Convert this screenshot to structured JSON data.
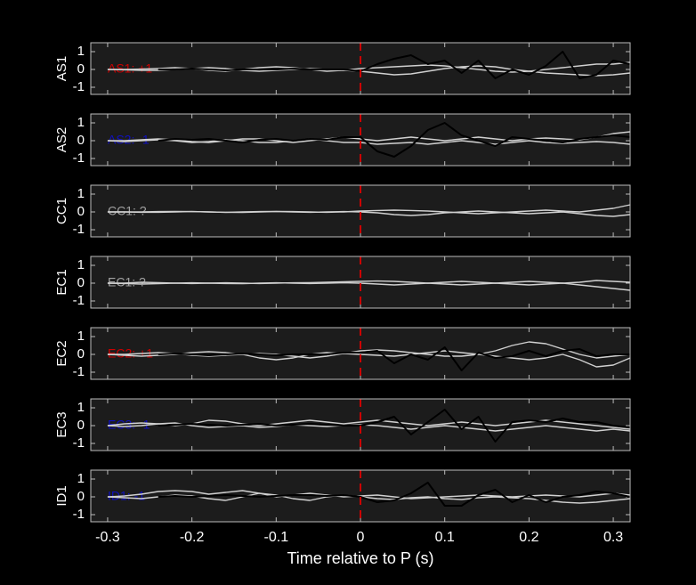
{
  "chart_data": [
    {
      "type": "line",
      "ylabel": "AS1",
      "annotation": {
        "text": "AS1: +1",
        "color": "#cc0000"
      },
      "xlim": [
        -0.32,
        0.32
      ],
      "xticks": [
        -0.3,
        -0.2,
        -0.1,
        0,
        0.1,
        0.2,
        0.3
      ],
      "ylim": [
        -1.4,
        1.5
      ],
      "yticks": [
        -1,
        0,
        1
      ],
      "vline": {
        "x": 0,
        "color": "#e00000"
      },
      "x": [
        -0.3,
        -0.28,
        -0.26,
        -0.24,
        -0.22,
        -0.2,
        -0.18,
        -0.16,
        -0.14,
        -0.12,
        -0.1,
        -0.08,
        -0.06,
        -0.04,
        -0.02,
        0,
        0.02,
        0.04,
        0.06,
        0.08,
        0.1,
        0.12,
        0.14,
        0.16,
        0.18,
        0.2,
        0.22,
        0.24,
        0.26,
        0.28,
        0.3,
        0.32
      ],
      "series": [
        {
          "color": "#d0d0d0",
          "values": [
            0,
            0,
            0.02,
            0.05,
            0.1,
            0.05,
            -0.05,
            -0.1,
            0,
            0.1,
            0.15,
            0.1,
            0,
            -0.1,
            -0.05,
            0.05,
            0.1,
            0.15,
            0.2,
            0.25,
            0.2,
            0.1,
            0,
            -0.1,
            -0.15,
            -0.1,
            0,
            0.1,
            0.2,
            0.3,
            0.3,
            0.4
          ]
        },
        {
          "color": "#d0d0d0",
          "values": [
            0,
            -0.02,
            -0.05,
            -0.05,
            0,
            0.05,
            0.1,
            0.05,
            -0.05,
            -0.1,
            -0.05,
            0,
            0.05,
            0,
            -0.05,
            -0.1,
            -0.2,
            -0.3,
            -0.25,
            -0.1,
            0.05,
            0.15,
            0.2,
            0.15,
            0,
            -0.1,
            -0.2,
            -0.25,
            -0.3,
            -0.35,
            -0.3,
            -0.2
          ]
        },
        {
          "color": "#000000",
          "values": [
            null,
            null,
            null,
            0,
            0,
            0.05,
            0,
            -0.05,
            0,
            0,
            0,
            0.05,
            0,
            0,
            0,
            -0.1,
            0.3,
            0.6,
            0.8,
            0.3,
            0.5,
            -0.2,
            0.5,
            -0.5,
            0,
            -0.3,
            0.2,
            1.0,
            -0.5,
            -0.3,
            0.5,
            0.3
          ]
        }
      ]
    },
    {
      "type": "line",
      "ylabel": "AS2",
      "annotation": {
        "text": "AS2: -1",
        "color": "#1010c0"
      },
      "xlim": [
        -0.32,
        0.32
      ],
      "xticks": [
        -0.3,
        -0.2,
        -0.1,
        0,
        0.1,
        0.2,
        0.3
      ],
      "ylim": [
        -1.4,
        1.5
      ],
      "yticks": [
        -1,
        0,
        1
      ],
      "vline": {
        "x": 0,
        "color": "#e00000"
      },
      "x": [
        -0.3,
        -0.28,
        -0.26,
        -0.24,
        -0.22,
        -0.2,
        -0.18,
        -0.16,
        -0.14,
        -0.12,
        -0.1,
        -0.08,
        -0.06,
        -0.04,
        -0.02,
        0,
        0.02,
        0.04,
        0.06,
        0.08,
        0.1,
        0.12,
        0.14,
        0.16,
        0.18,
        0.2,
        0.22,
        0.24,
        0.26,
        0.28,
        0.3,
        0.32
      ],
      "series": [
        {
          "color": "#d0d0d0",
          "values": [
            0,
            0,
            0.05,
            0.1,
            0.05,
            -0.05,
            -0.1,
            0,
            0.1,
            0.1,
            0,
            -0.1,
            0,
            0.1,
            0.2,
            0.1,
            0,
            0.1,
            0.2,
            0.1,
            0,
            0.1,
            0.2,
            0.1,
            0,
            0.1,
            0.15,
            0.1,
            0.05,
            0.2,
            0.4,
            0.5
          ]
        },
        {
          "color": "#d0d0d0",
          "values": [
            0,
            -0.05,
            0,
            0.05,
            0,
            -0.1,
            -0.05,
            0.05,
            0,
            -0.1,
            -0.1,
            0,
            0.1,
            0,
            -0.1,
            -0.1,
            -0.2,
            -0.15,
            -0.1,
            -0.2,
            -0.1,
            0,
            -0.1,
            -0.2,
            -0.1,
            0,
            -0.1,
            -0.15,
            -0.1,
            -0.05,
            -0.1,
            -0.2
          ]
        },
        {
          "color": "#000000",
          "values": [
            null,
            null,
            null,
            0,
            0.1,
            0.05,
            0.1,
            0,
            -0.1,
            0.05,
            0.1,
            0,
            0.1,
            0.05,
            0.2,
            0.2,
            -0.6,
            -0.9,
            -0.3,
            0.6,
            1.0,
            0.3,
            0,
            -0.3,
            0.2,
            0.1,
            0,
            -0.1,
            0.1,
            0.2,
            0.3,
            0.2
          ]
        }
      ]
    },
    {
      "type": "line",
      "ylabel": "CC1",
      "annotation": {
        "text": "CC1: ?",
        "color": "#a0a0a0"
      },
      "xlim": [
        -0.32,
        0.32
      ],
      "xticks": [
        -0.3,
        -0.2,
        -0.1,
        0,
        0.1,
        0.2,
        0.3
      ],
      "ylim": [
        -1.4,
        1.5
      ],
      "yticks": [
        -1,
        0,
        1
      ],
      "vline": {
        "x": 0,
        "color": "#e00000"
      },
      "x": [
        -0.3,
        -0.28,
        -0.26,
        -0.24,
        -0.22,
        -0.2,
        -0.18,
        -0.16,
        -0.14,
        -0.12,
        -0.1,
        -0.08,
        -0.06,
        -0.04,
        -0.02,
        0,
        0.02,
        0.04,
        0.06,
        0.08,
        0.1,
        0.12,
        0.14,
        0.16,
        0.18,
        0.2,
        0.22,
        0.24,
        0.26,
        0.28,
        0.3,
        0.32
      ],
      "series": [
        {
          "color": "#d0d0d0",
          "values": [
            0,
            0,
            0,
            0.02,
            0.03,
            0.02,
            0,
            -0.02,
            0,
            0.02,
            0.03,
            0.02,
            0,
            -0.02,
            0,
            0.05,
            0.08,
            0.1,
            0.08,
            0.05,
            0,
            -0.05,
            -0.1,
            -0.05,
            0,
            0.05,
            0.1,
            0.05,
            0,
            0.1,
            0.2,
            0.4
          ]
        },
        {
          "color": "#d0d0d0",
          "values": [
            0,
            0,
            -0.02,
            -0.02,
            0,
            0.02,
            0,
            -0.02,
            -0.03,
            0,
            0.02,
            0,
            -0.02,
            0,
            0.02,
            0,
            -0.05,
            -0.15,
            -0.2,
            -0.15,
            -0.05,
            0,
            0.05,
            0,
            -0.05,
            -0.1,
            -0.05,
            0,
            -0.1,
            -0.2,
            -0.25,
            -0.15
          ]
        }
      ]
    },
    {
      "type": "line",
      "ylabel": "EC1",
      "annotation": {
        "text": "EC1: ?",
        "color": "#a0a0a0"
      },
      "xlim": [
        -0.32,
        0.32
      ],
      "xticks": [
        -0.3,
        -0.2,
        -0.1,
        0,
        0.1,
        0.2,
        0.3
      ],
      "ylim": [
        -1.4,
        1.5
      ],
      "yticks": [
        -1,
        0,
        1
      ],
      "vline": {
        "x": 0,
        "color": "#e00000"
      },
      "x": [
        -0.3,
        -0.28,
        -0.26,
        -0.24,
        -0.22,
        -0.2,
        -0.18,
        -0.16,
        -0.14,
        -0.12,
        -0.1,
        -0.08,
        -0.06,
        -0.04,
        -0.02,
        0,
        0.02,
        0.04,
        0.06,
        0.08,
        0.1,
        0.12,
        0.14,
        0.16,
        0.18,
        0.2,
        0.22,
        0.24,
        0.26,
        0.28,
        0.3,
        0.32
      ],
      "series": [
        {
          "color": "#d0d0d0",
          "values": [
            0,
            0,
            0.05,
            0.03,
            0,
            -0.02,
            0,
            0.02,
            0,
            -0.02,
            0,
            0.02,
            0.03,
            0.05,
            0.08,
            0.1,
            0.12,
            0.1,
            0.05,
            0,
            0.05,
            0.1,
            0.05,
            0,
            0.05,
            0.1,
            0.05,
            0,
            0.05,
            0.15,
            0.1,
            0.05
          ]
        },
        {
          "color": "#d0d0d0",
          "values": [
            0,
            -0.02,
            -0.05,
            -0.03,
            0,
            0.02,
            0,
            -0.02,
            -0.03,
            0,
            0.02,
            0,
            -0.02,
            0,
            0.02,
            0,
            -0.05,
            -0.1,
            -0.05,
            0,
            -0.05,
            -0.1,
            -0.05,
            0,
            -0.05,
            -0.1,
            -0.05,
            0,
            -0.1,
            -0.2,
            -0.3,
            -0.4
          ]
        }
      ]
    },
    {
      "type": "line",
      "ylabel": "EC2",
      "annotation": {
        "text": "EC2: +1",
        "color": "#cc0000"
      },
      "xlim": [
        -0.32,
        0.32
      ],
      "xticks": [
        -0.3,
        -0.2,
        -0.1,
        0,
        0.1,
        0.2,
        0.3
      ],
      "ylim": [
        -1.4,
        1.5
      ],
      "yticks": [
        -1,
        0,
        1
      ],
      "vline": {
        "x": 0,
        "color": "#e00000"
      },
      "x": [
        -0.3,
        -0.28,
        -0.26,
        -0.24,
        -0.22,
        -0.2,
        -0.18,
        -0.16,
        -0.14,
        -0.12,
        -0.1,
        -0.08,
        -0.06,
        -0.04,
        -0.02,
        0,
        0.02,
        0.04,
        0.06,
        0.08,
        0.1,
        0.12,
        0.14,
        0.16,
        0.18,
        0.2,
        0.22,
        0.24,
        0.26,
        0.28,
        0.3,
        0.32
      ],
      "series": [
        {
          "color": "#d0d0d0",
          "values": [
            0,
            0,
            0.05,
            0.1,
            0.05,
            -0.05,
            -0.1,
            -0.05,
            0,
            0.05,
            0,
            -0.1,
            -0.2,
            -0.1,
            0.05,
            0.2,
            0.25,
            0.2,
            0.1,
            0,
            -0.1,
            -0.1,
            0,
            0.2,
            0.5,
            0.7,
            0.6,
            0.3,
            0,
            -0.2,
            -0.1,
            0
          ]
        },
        {
          "color": "#d0d0d0",
          "values": [
            0,
            -0.05,
            -0.1,
            -0.05,
            0,
            0.1,
            0.15,
            0.1,
            0,
            -0.2,
            -0.3,
            -0.2,
            0,
            0.1,
            0.05,
            0,
            -0.05,
            -0.1,
            0,
            0.1,
            0.2,
            0.1,
            0,
            -0.1,
            -0.2,
            -0.3,
            -0.2,
            0,
            -0.3,
            -0.7,
            -0.6,
            -0.2
          ]
        },
        {
          "color": "#000000",
          "values": [
            null,
            null,
            null,
            0,
            0.05,
            0,
            -0.05,
            0,
            0.05,
            0,
            -0.05,
            0,
            0,
            0,
            0.1,
            0.1,
            0.2,
            -0.5,
            0,
            -0.3,
            0.4,
            -0.9,
            0.1,
            -0.2,
            -0.1,
            0.2,
            -0.1,
            0.2,
            0.3,
            -0.1,
            0,
            0
          ]
        }
      ]
    },
    {
      "type": "line",
      "ylabel": "EC3",
      "annotation": {
        "text": "EC3: -1",
        "color": "#1010c0"
      },
      "xlim": [
        -0.32,
        0.32
      ],
      "xticks": [
        -0.3,
        -0.2,
        -0.1,
        0,
        0.1,
        0.2,
        0.3
      ],
      "ylim": [
        -1.4,
        1.5
      ],
      "yticks": [
        -1,
        0,
        1
      ],
      "vline": {
        "x": 0,
        "color": "#e00000"
      },
      "x": [
        -0.3,
        -0.28,
        -0.26,
        -0.24,
        -0.22,
        -0.2,
        -0.18,
        -0.16,
        -0.14,
        -0.12,
        -0.1,
        -0.08,
        -0.06,
        -0.04,
        -0.02,
        0,
        0.02,
        0.04,
        0.06,
        0.08,
        0.1,
        0.12,
        0.14,
        0.16,
        0.18,
        0.2,
        0.22,
        0.24,
        0.26,
        0.28,
        0.3,
        0.32
      ],
      "series": [
        {
          "color": "#d0d0d0",
          "values": [
            0,
            0.1,
            0.15,
            0.1,
            0,
            0.1,
            0.3,
            0.25,
            0.1,
            0,
            0.1,
            0.2,
            0.3,
            0.2,
            0.1,
            0.2,
            0.3,
            0.2,
            0.1,
            0,
            0.1,
            0.2,
            0.1,
            0,
            0.1,
            0.2,
            0.3,
            0.2,
            0.1,
            0,
            -0.1,
            -0.2
          ]
        },
        {
          "color": "#d0d0d0",
          "values": [
            0,
            -0.05,
            0,
            0.1,
            0.15,
            0,
            -0.1,
            -0.05,
            0,
            -0.1,
            -0.05,
            0.05,
            0,
            -0.05,
            0,
            0.05,
            0,
            -0.1,
            -0.2,
            -0.1,
            0,
            -0.1,
            -0.2,
            -0.3,
            -0.2,
            -0.1,
            0,
            -0.1,
            -0.2,
            -0.3,
            -0.2,
            -0.3
          ]
        },
        {
          "color": "#000000",
          "values": [
            null,
            null,
            null,
            0,
            0.05,
            0.1,
            0.05,
            0,
            0.05,
            0.1,
            0,
            0.05,
            0.1,
            0.05,
            0,
            0,
            0.2,
            0.5,
            -0.5,
            0.2,
            0.9,
            -0.2,
            0.5,
            -0.9,
            0.2,
            0.3,
            0.2,
            0.4,
            0.2,
            0.2,
            0,
            -0.1
          ]
        }
      ]
    },
    {
      "type": "line",
      "ylabel": "ID1",
      "annotation": {
        "text": "ID1: -1",
        "color": "#1010c0"
      },
      "xlim": [
        -0.32,
        0.32
      ],
      "xticks": [
        -0.3,
        -0.2,
        -0.1,
        0,
        0.1,
        0.2,
        0.3
      ],
      "ylim": [
        -1.4,
        1.5
      ],
      "yticks": [
        -1,
        0,
        1
      ],
      "xlabel": "Time relative to P (s)",
      "vline": {
        "x": 0,
        "color": "#e00000"
      },
      "x": [
        -0.3,
        -0.28,
        -0.26,
        -0.24,
        -0.22,
        -0.2,
        -0.18,
        -0.16,
        -0.14,
        -0.12,
        -0.1,
        -0.08,
        -0.06,
        -0.04,
        -0.02,
        0,
        0.02,
        0.04,
        0.06,
        0.08,
        0.1,
        0.12,
        0.14,
        0.16,
        0.18,
        0.2,
        0.22,
        0.24,
        0.26,
        0.28,
        0.3,
        0.32
      ],
      "series": [
        {
          "color": "#d0d0d0",
          "values": [
            0,
            0.05,
            0.15,
            0.3,
            0.35,
            0.3,
            0.15,
            0.25,
            0.35,
            0.2,
            0,
            0.1,
            0.2,
            0.1,
            0,
            0.05,
            0.1,
            0,
            -0.1,
            -0.05,
            0,
            0.05,
            0.1,
            0.05,
            0,
            0.05,
            0.1,
            0.05,
            0,
            0.1,
            0.2,
            0.1
          ]
        },
        {
          "color": "#d0d0d0",
          "values": [
            0,
            -0.05,
            -0.1,
            0,
            0.1,
            0.05,
            -0.1,
            -0.2,
            0,
            0.2,
            0.1,
            -0.1,
            -0.2,
            0,
            0.1,
            0,
            -0.1,
            -0.15,
            -0.05,
            0,
            -0.1,
            -0.15,
            -0.05,
            0,
            -0.05,
            -0.1,
            -0.2,
            -0.3,
            -0.35,
            -0.3,
            -0.2,
            -0.1
          ]
        },
        {
          "color": "#000000",
          "values": [
            null,
            null,
            null,
            0,
            0.05,
            0,
            0.05,
            0.1,
            0.05,
            0,
            0.05,
            0.1,
            0.1,
            0.05,
            0.1,
            0,
            -0.3,
            -0.2,
            0.2,
            0.8,
            -0.5,
            -0.5,
            0.1,
            0.4,
            -0.3,
            0.1,
            -0.3,
            0,
            0.1,
            0.3,
            0.2,
            0
          ]
        }
      ]
    }
  ]
}
